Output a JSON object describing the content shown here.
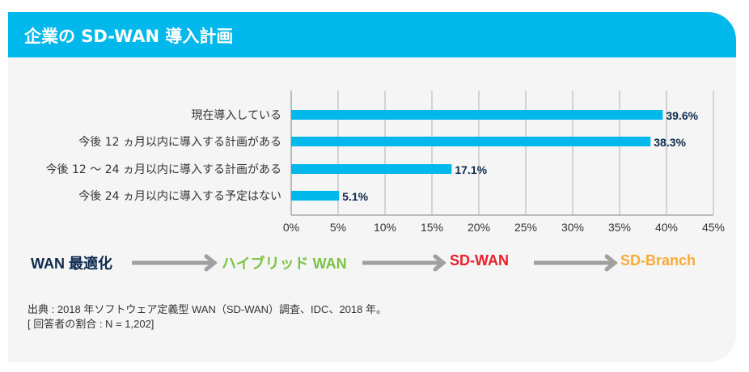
{
  "title": "企業の SD-WAN 導入計画",
  "chart_data": {
    "type": "bar",
    "orientation": "horizontal",
    "categories": [
      "現在導入している",
      "今後 12 ヵ月以内に導入する計画がある",
      "今後 12 ～ 24 ヵ月以内に導入する計画がある",
      "今後 24 ヵ月以内に導入する予定はない"
    ],
    "values": [
      39.6,
      38.3,
      17.1,
      5.1
    ],
    "data_labels": [
      "39.6%",
      "38.3%",
      "17.1%",
      "5.1%"
    ],
    "xlim": [
      0,
      45
    ],
    "xticks": [
      "0%",
      "5%",
      "10%",
      "15%",
      "20%",
      "25%",
      "30%",
      "35%",
      "40%",
      "45%"
    ],
    "grid": true,
    "bar_color": "#00b8eb"
  },
  "flow": [
    {
      "label": "WAN 最適化",
      "color": "#0d2a4e"
    },
    {
      "label": "ハイブリッド WAN",
      "color": "#7cc242"
    },
    {
      "label": "SD-WAN",
      "color": "#e8202a"
    },
    {
      "label": "SD-Branch",
      "color": "#fbaa36"
    }
  ],
  "notes": [
    "出典 : 2018 年ソフトウェア定義型 WAN（SD-WAN）調査、IDC、2018 年。",
    "[ 回答者の割合 : N = 1,202]"
  ]
}
